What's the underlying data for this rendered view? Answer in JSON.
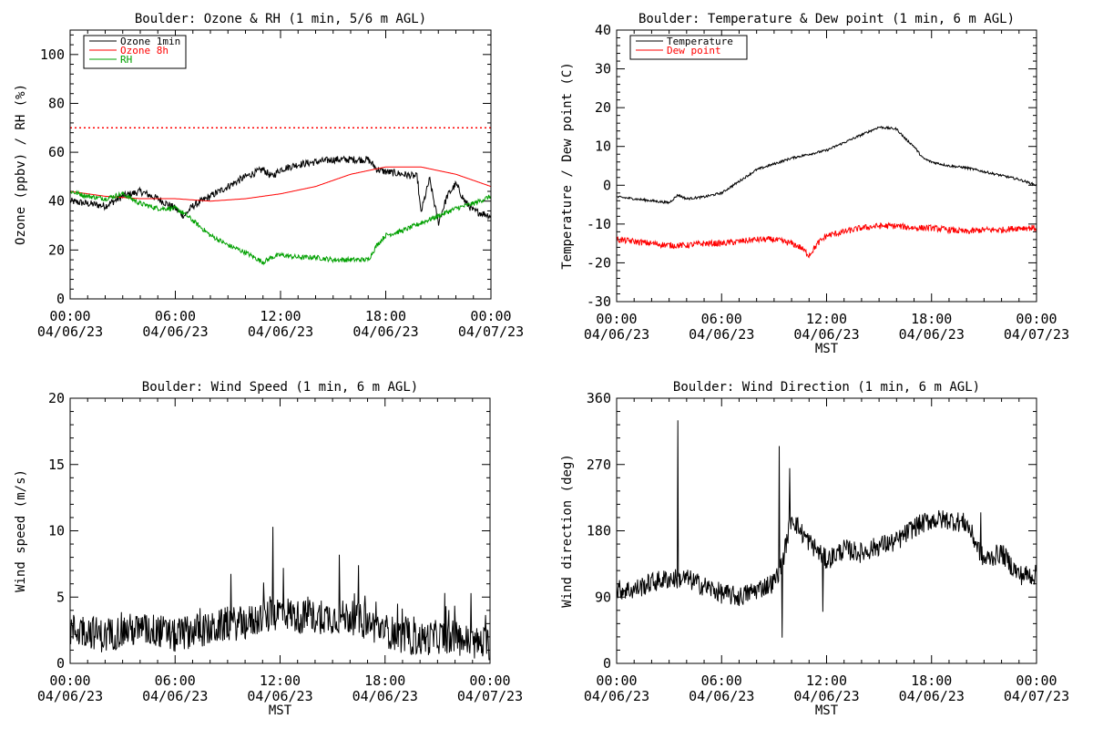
{
  "chart_data": [
    {
      "id": "ozone_rh",
      "type": "line",
      "title": "Boulder: Ozone & RH (1 min, 5/6 m AGL)",
      "ylabel": "Ozone (ppbv) / RH (%)",
      "xlabel": "",
      "xlim": [
        0,
        24
      ],
      "ylim": [
        0,
        110
      ],
      "yticks": [
        0,
        20,
        40,
        60,
        80,
        100
      ],
      "reference_line": {
        "y": 70,
        "color": "#ff0000",
        "style": "dotted"
      },
      "legend": {
        "placement": "top-left",
        "entries": [
          "Ozone 1min",
          "Ozone 8h",
          "RH"
        ]
      },
      "series": [
        {
          "name": "Ozone 1min",
          "color": "#000000",
          "noise": 1.5,
          "x": [
            0,
            1,
            2,
            3,
            4,
            5,
            6,
            6.5,
            7,
            7.5,
            8,
            9,
            10,
            11,
            11.5,
            12,
            13,
            14,
            15,
            16,
            17,
            17.5,
            18,
            19,
            19.8,
            20,
            20.5,
            21,
            21.5,
            22,
            22.5,
            23,
            24
          ],
          "y": [
            40,
            39,
            38,
            42,
            44,
            41,
            37,
            34,
            38,
            40,
            42,
            46,
            50,
            53,
            50,
            53,
            55,
            56,
            57,
            57,
            57,
            53,
            52,
            51,
            50,
            35,
            49,
            31,
            42,
            47,
            40,
            36,
            34
          ]
        },
        {
          "name": "Ozone 8h",
          "color": "#ff0000",
          "noise": 0,
          "x": [
            0,
            2,
            4,
            6,
            8,
            10,
            12,
            14,
            16,
            18,
            20,
            22,
            24
          ],
          "y": [
            44,
            42,
            41,
            41,
            40,
            41,
            43,
            46,
            51,
            54,
            54,
            51,
            46
          ]
        },
        {
          "name": "RH",
          "color": "#00a000",
          "noise": 1.0,
          "x": [
            0,
            1,
            2,
            3,
            4,
            5,
            6,
            6.5,
            7,
            8,
            9,
            10,
            11,
            11.5,
            12,
            13,
            14,
            15,
            16,
            17,
            17.5,
            18,
            19,
            20,
            21,
            22,
            23,
            24
          ],
          "y": [
            44,
            42,
            41,
            43,
            39,
            37,
            37,
            35,
            32,
            26,
            22,
            19,
            15,
            17,
            18,
            17,
            17,
            16,
            16,
            16,
            22,
            26,
            28,
            31,
            34,
            37,
            39,
            42
          ]
        }
      ]
    },
    {
      "id": "temp_dew",
      "type": "line",
      "title": "Boulder: Temperature & Dew point (1 min, 6 m AGL)",
      "ylabel": "Temperature / Dew point (C)",
      "xlabel": "MST",
      "xlim": [
        0,
        24
      ],
      "ylim": [
        -30,
        40
      ],
      "yticks": [
        -30,
        -20,
        -10,
        0,
        10,
        20,
        30,
        40
      ],
      "legend": {
        "placement": "top-left",
        "entries": [
          "Temperature",
          "Dew point"
        ]
      },
      "series": [
        {
          "name": "Temperature",
          "color": "#000000",
          "noise": 0.3,
          "x": [
            0,
            1,
            2,
            3,
            3.5,
            4,
            5,
            6,
            7,
            8,
            9,
            10,
            11,
            12,
            13,
            14,
            15,
            16,
            16.5,
            17,
            17.5,
            18,
            19,
            20,
            21,
            22,
            23,
            24
          ],
          "y": [
            -3,
            -3.5,
            -4,
            -4.5,
            -2.5,
            -3.5,
            -3,
            -2,
            1,
            4,
            5.5,
            7,
            8,
            9,
            11,
            13,
            15,
            14.5,
            12,
            10,
            7,
            6,
            5,
            4.5,
            3.5,
            2.5,
            1.5,
            0
          ]
        },
        {
          "name": "Dew point",
          "color": "#ff0000",
          "noise": 0.8,
          "x": [
            0,
            1,
            2,
            3,
            4,
            5,
            6,
            7,
            8,
            9,
            10,
            10.5,
            11,
            11.5,
            12,
            13,
            14,
            15,
            16,
            17,
            18,
            19,
            20,
            21,
            22,
            23,
            24
          ],
          "y": [
            -14,
            -14.5,
            -15,
            -15.5,
            -15.5,
            -15,
            -15,
            -14.5,
            -14,
            -14,
            -15,
            -16,
            -18,
            -15,
            -13,
            -12,
            -11,
            -10.5,
            -10.5,
            -11,
            -11,
            -11.5,
            -12,
            -11.5,
            -11.5,
            -11,
            -11
          ]
        }
      ]
    },
    {
      "id": "wind_speed",
      "type": "line",
      "title": "Boulder: Wind Speed (1 min, 6 m AGL)",
      "ylabel": "Wind speed (m/s)",
      "xlabel": "MST",
      "xlim": [
        0,
        24
      ],
      "ylim": [
        0,
        20
      ],
      "yticks": [
        0,
        5,
        10,
        15,
        20
      ],
      "series": [
        {
          "name": "",
          "color": "#000000",
          "noise": 1.3,
          "x": [
            0,
            1,
            2,
            3,
            4,
            5,
            6,
            7,
            8,
            9,
            10,
            11,
            11.5,
            12,
            13,
            14,
            15,
            16,
            17,
            18,
            19,
            20,
            21,
            22,
            23,
            24
          ],
          "y": [
            2.5,
            2.5,
            2,
            2.5,
            2.5,
            2.5,
            2,
            2.5,
            2.5,
            3,
            3,
            3.5,
            3.5,
            4,
            3.5,
            3.5,
            3.5,
            3.5,
            3,
            2.5,
            2,
            1.8,
            2,
            2,
            1.5,
            1.5
          ],
          "spikes": [
            [
              11.6,
              10.3
            ],
            [
              15.4,
              8.2
            ],
            [
              12.2,
              7.2
            ],
            [
              16.5,
              7.4
            ],
            [
              22.9,
              5.3
            ]
          ]
        }
      ]
    },
    {
      "id": "wind_dir",
      "type": "line",
      "title": "Boulder: Wind Direction (1 min, 6 m AGL)",
      "ylabel": "Wind direction (deg)",
      "xlabel": "MST",
      "xlim": [
        0,
        24
      ],
      "ylim": [
        0,
        360
      ],
      "yticks": [
        0,
        90,
        180,
        270,
        360
      ],
      "series": [
        {
          "name": "",
          "color": "#000000",
          "noise": 14,
          "x": [
            0,
            1,
            2,
            3,
            4,
            5,
            6,
            7,
            8,
            9,
            9.5,
            10,
            10.5,
            11,
            12,
            13,
            14,
            15,
            16,
            17,
            18,
            19,
            20,
            21,
            22,
            23,
            24
          ],
          "y": [
            100,
            100,
            110,
            115,
            115,
            105,
            95,
            90,
            100,
            110,
            140,
            200,
            180,
            165,
            140,
            155,
            150,
            160,
            165,
            185,
            195,
            195,
            190,
            140,
            150,
            120,
            120
          ],
          "spikes": [
            [
              3.5,
              330
            ],
            [
              9.3,
              295
            ],
            [
              9.45,
              35
            ],
            [
              9.9,
              265
            ],
            [
              11.8,
              70
            ],
            [
              20.8,
              205
            ]
          ]
        }
      ]
    }
  ],
  "time_axis": {
    "ticks": [
      {
        "time": "00:00",
        "date": "04/06/23"
      },
      {
        "time": "06:00",
        "date": "04/06/23"
      },
      {
        "time": "12:00",
        "date": "04/06/23"
      },
      {
        "time": "18:00",
        "date": "04/06/23"
      },
      {
        "time": "00:00",
        "date": "04/07/23"
      }
    ]
  }
}
